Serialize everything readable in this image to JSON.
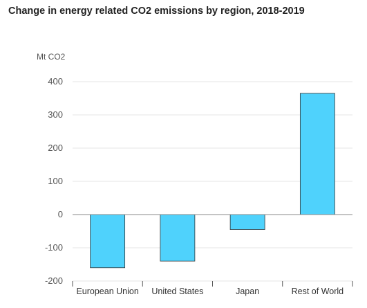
{
  "chart_data": {
    "type": "bar",
    "title": "Change in energy related CO2 emissions by region, 2018-2019",
    "ylabel": "Mt CO2",
    "xlabel": "",
    "categories": [
      "European Union",
      "United States",
      "Japan",
      "Rest of World"
    ],
    "values": [
      -160,
      -140,
      -45,
      365
    ],
    "ylim": [
      -200,
      400
    ],
    "yticks": [
      -200,
      -100,
      0,
      100,
      200,
      300,
      400
    ],
    "grid": true,
    "bar_color": "#4fd2fc",
    "bar_stroke": "#333333",
    "grid_color": "#e6e6e6",
    "zero_line_color": "#888888"
  }
}
